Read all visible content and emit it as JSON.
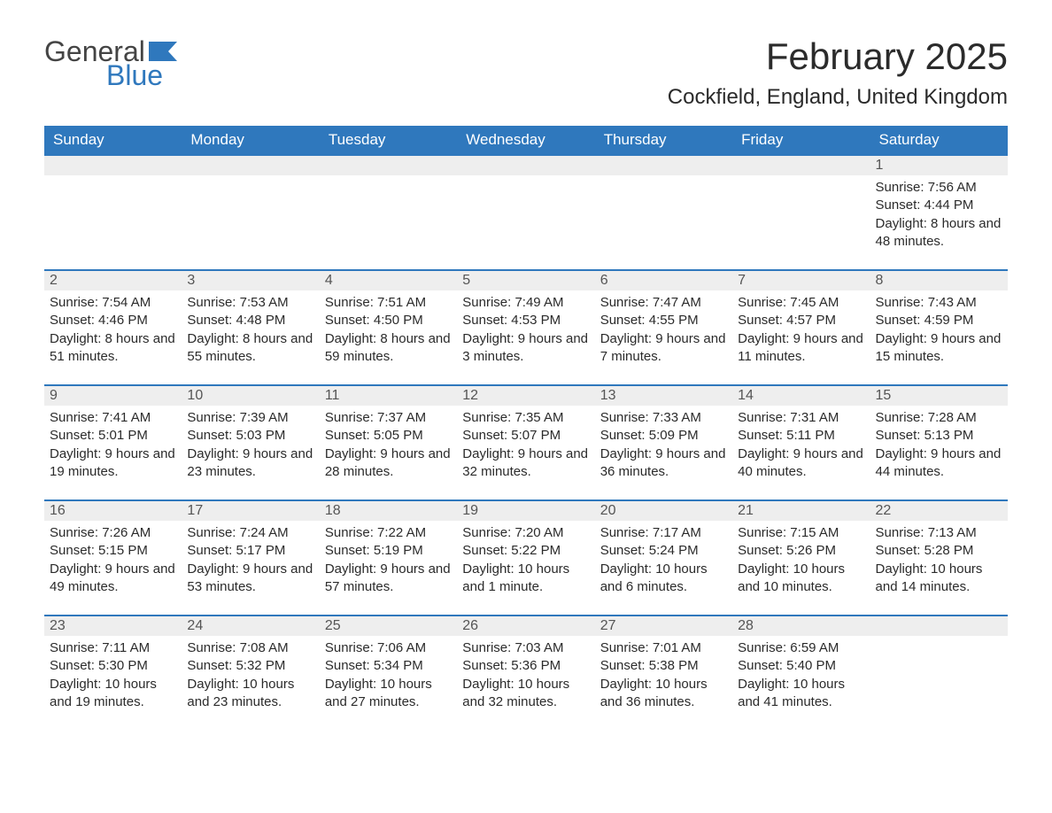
{
  "logo": {
    "text1": "General",
    "text2": "Blue",
    "shape_color": "#2f78bd"
  },
  "title": "February 2025",
  "location": "Cockfield, England, United Kingdom",
  "header_bg": "#2f78bd",
  "header_fg": "#ffffff",
  "stripe_bg": "#eeeeee",
  "stripe_border": "#2f78bd",
  "columns": [
    "Sunday",
    "Monday",
    "Tuesday",
    "Wednesday",
    "Thursday",
    "Friday",
    "Saturday"
  ],
  "weeks": [
    [
      null,
      null,
      null,
      null,
      null,
      null,
      {
        "n": "1",
        "sunrise": "Sunrise: 7:56 AM",
        "sunset": "Sunset: 4:44 PM",
        "daylight": "Daylight: 8 hours and 48 minutes."
      }
    ],
    [
      {
        "n": "2",
        "sunrise": "Sunrise: 7:54 AM",
        "sunset": "Sunset: 4:46 PM",
        "daylight": "Daylight: 8 hours and 51 minutes."
      },
      {
        "n": "3",
        "sunrise": "Sunrise: 7:53 AM",
        "sunset": "Sunset: 4:48 PM",
        "daylight": "Daylight: 8 hours and 55 minutes."
      },
      {
        "n": "4",
        "sunrise": "Sunrise: 7:51 AM",
        "sunset": "Sunset: 4:50 PM",
        "daylight": "Daylight: 8 hours and 59 minutes."
      },
      {
        "n": "5",
        "sunrise": "Sunrise: 7:49 AM",
        "sunset": "Sunset: 4:53 PM",
        "daylight": "Daylight: 9 hours and 3 minutes."
      },
      {
        "n": "6",
        "sunrise": "Sunrise: 7:47 AM",
        "sunset": "Sunset: 4:55 PM",
        "daylight": "Daylight: 9 hours and 7 minutes."
      },
      {
        "n": "7",
        "sunrise": "Sunrise: 7:45 AM",
        "sunset": "Sunset: 4:57 PM",
        "daylight": "Daylight: 9 hours and 11 minutes."
      },
      {
        "n": "8",
        "sunrise": "Sunrise: 7:43 AM",
        "sunset": "Sunset: 4:59 PM",
        "daylight": "Daylight: 9 hours and 15 minutes."
      }
    ],
    [
      {
        "n": "9",
        "sunrise": "Sunrise: 7:41 AM",
        "sunset": "Sunset: 5:01 PM",
        "daylight": "Daylight: 9 hours and 19 minutes."
      },
      {
        "n": "10",
        "sunrise": "Sunrise: 7:39 AM",
        "sunset": "Sunset: 5:03 PM",
        "daylight": "Daylight: 9 hours and 23 minutes."
      },
      {
        "n": "11",
        "sunrise": "Sunrise: 7:37 AM",
        "sunset": "Sunset: 5:05 PM",
        "daylight": "Daylight: 9 hours and 28 minutes."
      },
      {
        "n": "12",
        "sunrise": "Sunrise: 7:35 AM",
        "sunset": "Sunset: 5:07 PM",
        "daylight": "Daylight: 9 hours and 32 minutes."
      },
      {
        "n": "13",
        "sunrise": "Sunrise: 7:33 AM",
        "sunset": "Sunset: 5:09 PM",
        "daylight": "Daylight: 9 hours and 36 minutes."
      },
      {
        "n": "14",
        "sunrise": "Sunrise: 7:31 AM",
        "sunset": "Sunset: 5:11 PM",
        "daylight": "Daylight: 9 hours and 40 minutes."
      },
      {
        "n": "15",
        "sunrise": "Sunrise: 7:28 AM",
        "sunset": "Sunset: 5:13 PM",
        "daylight": "Daylight: 9 hours and 44 minutes."
      }
    ],
    [
      {
        "n": "16",
        "sunrise": "Sunrise: 7:26 AM",
        "sunset": "Sunset: 5:15 PM",
        "daylight": "Daylight: 9 hours and 49 minutes."
      },
      {
        "n": "17",
        "sunrise": "Sunrise: 7:24 AM",
        "sunset": "Sunset: 5:17 PM",
        "daylight": "Daylight: 9 hours and 53 minutes."
      },
      {
        "n": "18",
        "sunrise": "Sunrise: 7:22 AM",
        "sunset": "Sunset: 5:19 PM",
        "daylight": "Daylight: 9 hours and 57 minutes."
      },
      {
        "n": "19",
        "sunrise": "Sunrise: 7:20 AM",
        "sunset": "Sunset: 5:22 PM",
        "daylight": "Daylight: 10 hours and 1 minute."
      },
      {
        "n": "20",
        "sunrise": "Sunrise: 7:17 AM",
        "sunset": "Sunset: 5:24 PM",
        "daylight": "Daylight: 10 hours and 6 minutes."
      },
      {
        "n": "21",
        "sunrise": "Sunrise: 7:15 AM",
        "sunset": "Sunset: 5:26 PM",
        "daylight": "Daylight: 10 hours and 10 minutes."
      },
      {
        "n": "22",
        "sunrise": "Sunrise: 7:13 AM",
        "sunset": "Sunset: 5:28 PM",
        "daylight": "Daylight: 10 hours and 14 minutes."
      }
    ],
    [
      {
        "n": "23",
        "sunrise": "Sunrise: 7:11 AM",
        "sunset": "Sunset: 5:30 PM",
        "daylight": "Daylight: 10 hours and 19 minutes."
      },
      {
        "n": "24",
        "sunrise": "Sunrise: 7:08 AM",
        "sunset": "Sunset: 5:32 PM",
        "daylight": "Daylight: 10 hours and 23 minutes."
      },
      {
        "n": "25",
        "sunrise": "Sunrise: 7:06 AM",
        "sunset": "Sunset: 5:34 PM",
        "daylight": "Daylight: 10 hours and 27 minutes."
      },
      {
        "n": "26",
        "sunrise": "Sunrise: 7:03 AM",
        "sunset": "Sunset: 5:36 PM",
        "daylight": "Daylight: 10 hours and 32 minutes."
      },
      {
        "n": "27",
        "sunrise": "Sunrise: 7:01 AM",
        "sunset": "Sunset: 5:38 PM",
        "daylight": "Daylight: 10 hours and 36 minutes."
      },
      {
        "n": "28",
        "sunrise": "Sunrise: 6:59 AM",
        "sunset": "Sunset: 5:40 PM",
        "daylight": "Daylight: 10 hours and 41 minutes."
      },
      null
    ]
  ]
}
